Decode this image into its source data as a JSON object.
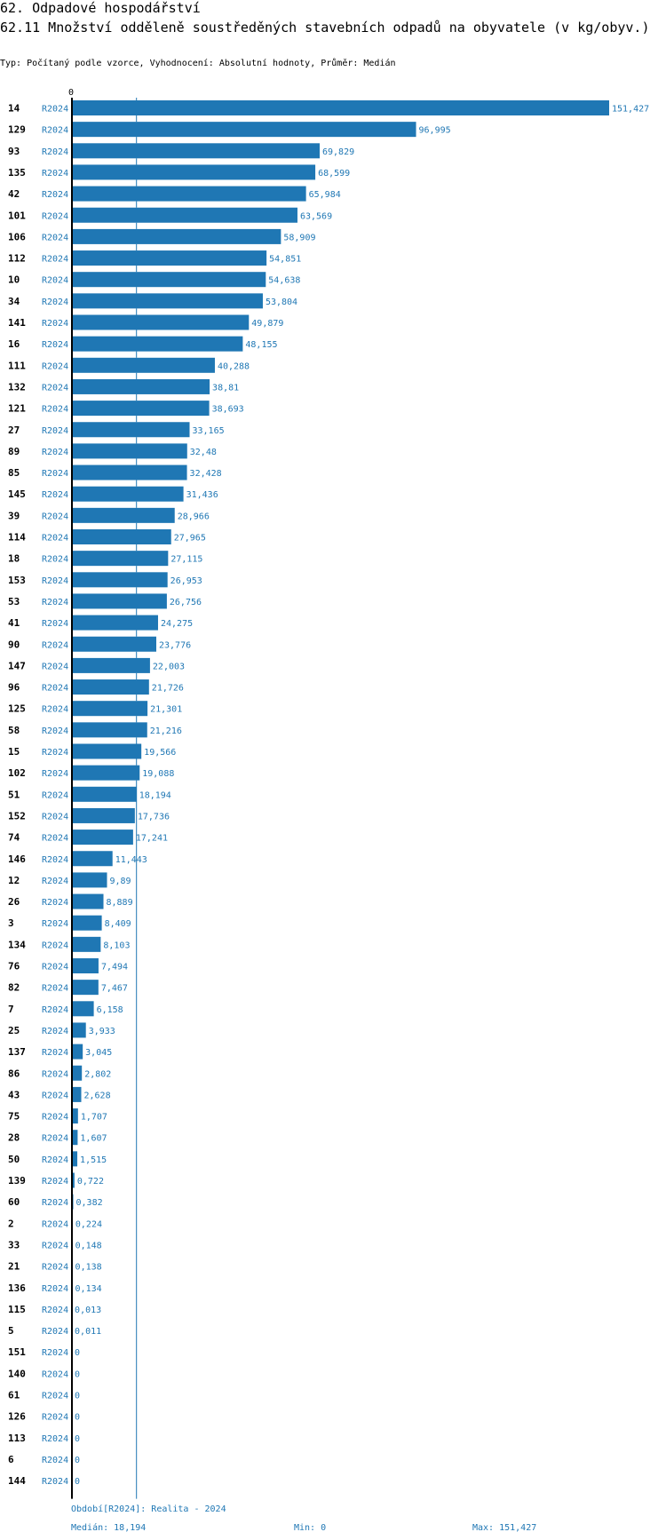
{
  "header": {
    "title": "62. Odpadové hospodářství",
    "subtitle": "62.11 Množství odděleně soustředěných stavebních odpadů na obyvatele (v kg/obyv.)",
    "meta": "Typ: Počítaný podle vzorce, Vyhodnocení: Absolutní hodnoty, Průměr: Medián"
  },
  "chart_data": {
    "type": "bar",
    "orientation": "horizontal",
    "axis_zero_label": "0",
    "series_label": "R2024",
    "median": 18.194,
    "categories": [
      "14",
      "129",
      "93",
      "135",
      "42",
      "101",
      "106",
      "112",
      "10",
      "34",
      "141",
      "16",
      "111",
      "132",
      "121",
      "27",
      "89",
      "85",
      "145",
      "39",
      "114",
      "18",
      "153",
      "53",
      "41",
      "90",
      "147",
      "96",
      "125",
      "58",
      "15",
      "102",
      "51",
      "152",
      "74",
      "146",
      "12",
      "26",
      "3",
      "134",
      "76",
      "82",
      "7",
      "25",
      "137",
      "86",
      "43",
      "75",
      "28",
      "50",
      "139",
      "60",
      "2",
      "33",
      "21",
      "136",
      "115",
      "5",
      "151",
      "140",
      "61",
      "126",
      "113",
      "6",
      "144"
    ],
    "values": [
      151.427,
      96.995,
      69.829,
      68.599,
      65.984,
      63.569,
      58.909,
      54.851,
      54.638,
      53.804,
      49.879,
      48.155,
      40.288,
      38.81,
      38.693,
      33.165,
      32.48,
      32.428,
      31.436,
      28.966,
      27.965,
      27.115,
      26.953,
      26.756,
      24.275,
      23.776,
      22.003,
      21.726,
      21.301,
      21.216,
      19.566,
      19.088,
      18.194,
      17.736,
      17.241,
      11.443,
      9.89,
      8.889,
      8.409,
      8.103,
      7.494,
      7.467,
      6.158,
      3.933,
      3.045,
      2.802,
      2.628,
      1.707,
      1.607,
      1.515,
      0.722,
      0.382,
      0.224,
      0.148,
      0.138,
      0.134,
      0.013,
      0.011,
      0,
      0,
      0,
      0,
      0,
      0,
      0
    ],
    "value_labels": [
      "151,427",
      "96,995",
      "69,829",
      "68,599",
      "65,984",
      "63,569",
      "58,909",
      "54,851",
      "54,638",
      "53,804",
      "49,879",
      "48,155",
      "40,288",
      "38,81",
      "38,693",
      "33,165",
      "32,48",
      "32,428",
      "31,436",
      "28,966",
      "27,965",
      "27,115",
      "26,953",
      "26,756",
      "24,275",
      "23,776",
      "22,003",
      "21,726",
      "21,301",
      "21,216",
      "19,566",
      "19,088",
      "18,194",
      "17,736",
      "17,241",
      "11,443",
      "9,89",
      "8,889",
      "8,409",
      "8,103",
      "7,494",
      "7,467",
      "6,158",
      "3,933",
      "3,045",
      "2,802",
      "2,628",
      "1,707",
      "1,607",
      "1,515",
      "0,722",
      "0,382",
      "0,224",
      "0,148",
      "0,138",
      "0,134",
      "0,013",
      "0,011",
      "0",
      "0",
      "0",
      "0",
      "0",
      "0",
      "0"
    ]
  },
  "footer": {
    "period": "Období[R2024]: Realita - 2024",
    "median": "Medián: 18,194",
    "min": "Min: 0",
    "max": "Max: 151,427"
  },
  "colors": {
    "bar": "#1f77b4",
    "accent": "#1f77b4",
    "text": "#000000"
  }
}
